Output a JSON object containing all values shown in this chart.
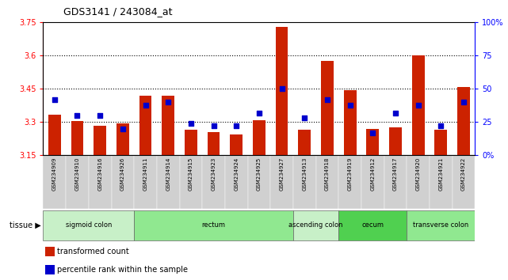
{
  "title": "GDS3141 / 243084_at",
  "samples": [
    "GSM234909",
    "GSM234910",
    "GSM234916",
    "GSM234926",
    "GSM234911",
    "GSM234914",
    "GSM234915",
    "GSM234923",
    "GSM234924",
    "GSM234925",
    "GSM234927",
    "GSM234913",
    "GSM234918",
    "GSM234919",
    "GSM234912",
    "GSM234917",
    "GSM234920",
    "GSM234921",
    "GSM234922"
  ],
  "red_values": [
    3.335,
    3.305,
    3.285,
    3.295,
    3.42,
    3.42,
    3.265,
    3.255,
    3.245,
    3.31,
    3.73,
    3.265,
    3.575,
    3.445,
    3.27,
    3.275,
    3.6,
    3.265,
    3.46
  ],
  "blue_values": [
    0.42,
    0.3,
    0.3,
    0.2,
    0.38,
    0.4,
    0.24,
    0.22,
    0.22,
    0.32,
    0.5,
    0.28,
    0.42,
    0.38,
    0.17,
    0.32,
    0.38,
    0.22,
    0.4
  ],
  "ylim_left": [
    3.15,
    3.75
  ],
  "ylim_right": [
    0.0,
    1.0
  ],
  "yticks_left": [
    3.15,
    3.3,
    3.45,
    3.6,
    3.75
  ],
  "ytick_labels_left": [
    "3.15",
    "3.3",
    "3.45",
    "3.6",
    "3.75"
  ],
  "yticks_right": [
    0.0,
    0.25,
    0.5,
    0.75,
    1.0
  ],
  "ytick_labels_right": [
    "0%",
    "25",
    "50",
    "75",
    "100%"
  ],
  "hlines": [
    3.3,
    3.45,
    3.6
  ],
  "bar_color": "#cc2200",
  "dot_color": "#0000cc",
  "tissue_groups": [
    {
      "label": "sigmoid colon",
      "start": 0,
      "end": 4,
      "color": "#c8f0c8"
    },
    {
      "label": "rectum",
      "start": 4,
      "end": 11,
      "color": "#90e890"
    },
    {
      "label": "ascending colon",
      "start": 11,
      "end": 13,
      "color": "#c8f0c8"
    },
    {
      "label": "cecum",
      "start": 13,
      "end": 16,
      "color": "#50d050"
    },
    {
      "label": "transverse colon",
      "start": 16,
      "end": 19,
      "color": "#90e890"
    }
  ],
  "legend_items": [
    {
      "color": "#cc2200",
      "label": "transformed count"
    },
    {
      "color": "#0000cc",
      "label": "percentile rank within the sample"
    }
  ],
  "bar_bottom": 3.15,
  "xticklabel_bg": "#d0d0d0",
  "spine_color": "#000000"
}
